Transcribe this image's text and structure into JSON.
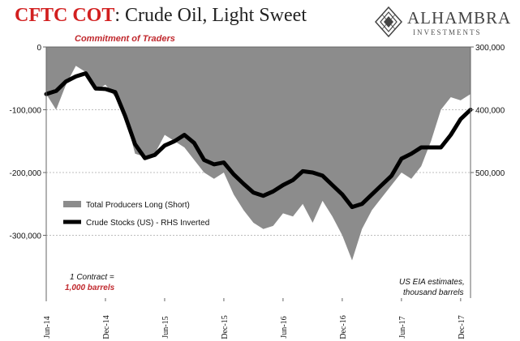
{
  "title": {
    "prefix": "CFTC COT",
    "rest": ": Crude Oil, Light Sweet"
  },
  "subtitle": "Commitment of Traders",
  "logo": {
    "name": "ALHAMBRA",
    "tagline": "INVESTMENTS",
    "icon": "diamond-pattern-icon"
  },
  "notes": {
    "contract_line1": "1 Contract =",
    "contract_line2": "1,000 barrels",
    "source_line1": "US EIA estimates,",
    "source_line2": "thousand barrels"
  },
  "colors": {
    "area": "#8c8c8c",
    "line": "#000000",
    "accent": "#c0282d",
    "grid": "#bdbdbd"
  },
  "chart_data": {
    "type": "area",
    "x_ticks": [
      "Jun-14",
      "Dec-14",
      "Jun-15",
      "Dec-15",
      "Jun-16",
      "Dec-16",
      "Jun-17",
      "Dec-17"
    ],
    "y_left": {
      "ticks": [
        0,
        -100000,
        -200000,
        -300000
      ],
      "tick_labels": [
        "0",
        "-100,000",
        "-200,000",
        "-300,000"
      ],
      "range": [
        -400000,
        0
      ]
    },
    "y_right": {
      "ticks": [
        300000,
        400000,
        500000
      ],
      "tick_labels": [
        "300,000",
        "400,000",
        "500,000"
      ],
      "range": [
        300000,
        700000
      ],
      "inverted": true
    },
    "grid": true,
    "legend_position": "middle-left",
    "series": [
      {
        "name": "Total Producers Long (Short)",
        "axis": "left",
        "kind": "area",
        "points": [
          [
            "2014-06",
            -75000
          ],
          [
            "2014-07",
            -100000
          ],
          [
            "2014-08",
            -60000
          ],
          [
            "2014-09",
            -30000
          ],
          [
            "2014-10",
            -40000
          ],
          [
            "2014-11",
            -70000
          ],
          [
            "2014-12",
            -60000
          ],
          [
            "2015-01",
            -80000
          ],
          [
            "2015-02",
            -110000
          ],
          [
            "2015-03",
            -170000
          ],
          [
            "2015-04",
            -175000
          ],
          [
            "2015-05",
            -170000
          ],
          [
            "2015-06",
            -140000
          ],
          [
            "2015-07",
            -150000
          ],
          [
            "2015-08",
            -160000
          ],
          [
            "2015-09",
            -180000
          ],
          [
            "2015-10",
            -200000
          ],
          [
            "2015-11",
            -210000
          ],
          [
            "2015-12",
            -200000
          ],
          [
            "2016-01",
            -235000
          ],
          [
            "2016-02",
            -260000
          ],
          [
            "2016-03",
            -280000
          ],
          [
            "2016-04",
            -290000
          ],
          [
            "2016-05",
            -285000
          ],
          [
            "2016-06",
            -265000
          ],
          [
            "2016-07",
            -270000
          ],
          [
            "2016-08",
            -250000
          ],
          [
            "2016-09",
            -280000
          ],
          [
            "2016-10",
            -245000
          ],
          [
            "2016-11",
            -270000
          ],
          [
            "2016-12",
            -300000
          ],
          [
            "2017-01",
            -340000
          ],
          [
            "2017-02",
            -290000
          ],
          [
            "2017-03",
            -260000
          ],
          [
            "2017-04",
            -240000
          ],
          [
            "2017-05",
            -220000
          ],
          [
            "2017-06",
            -200000
          ],
          [
            "2017-07",
            -210000
          ],
          [
            "2017-08",
            -190000
          ],
          [
            "2017-09",
            -150000
          ],
          [
            "2017-10",
            -100000
          ],
          [
            "2017-11",
            -80000
          ],
          [
            "2017-12",
            -85000
          ],
          [
            "2018-01",
            -75000
          ]
        ]
      },
      {
        "name": "Crude Stocks (US) - RHS Inverted",
        "axis": "right",
        "kind": "line",
        "points": [
          [
            "2014-06",
            375000
          ],
          [
            "2014-07",
            370000
          ],
          [
            "2014-08",
            355000
          ],
          [
            "2014-09",
            347000
          ],
          [
            "2014-10",
            342000
          ],
          [
            "2014-11",
            366000
          ],
          [
            "2014-12",
            367000
          ],
          [
            "2015-01",
            372000
          ],
          [
            "2015-02",
            410000
          ],
          [
            "2015-03",
            455000
          ],
          [
            "2015-04",
            477000
          ],
          [
            "2015-05",
            472000
          ],
          [
            "2015-06",
            457000
          ],
          [
            "2015-07",
            450000
          ],
          [
            "2015-08",
            440000
          ],
          [
            "2015-09",
            453000
          ],
          [
            "2015-10",
            480000
          ],
          [
            "2015-11",
            487000
          ],
          [
            "2015-12",
            484000
          ],
          [
            "2016-01",
            503000
          ],
          [
            "2016-02",
            518000
          ],
          [
            "2016-03",
            532000
          ],
          [
            "2016-04",
            537000
          ],
          [
            "2016-05",
            530000
          ],
          [
            "2016-06",
            520000
          ],
          [
            "2016-07",
            512000
          ],
          [
            "2016-08",
            498000
          ],
          [
            "2016-09",
            500000
          ],
          [
            "2016-10",
            505000
          ],
          [
            "2016-11",
            520000
          ],
          [
            "2016-12",
            535000
          ],
          [
            "2017-01",
            555000
          ],
          [
            "2017-02",
            550000
          ],
          [
            "2017-03",
            535000
          ],
          [
            "2017-04",
            520000
          ],
          [
            "2017-05",
            505000
          ],
          [
            "2017-06",
            478000
          ],
          [
            "2017-07",
            470000
          ],
          [
            "2017-08",
            460000
          ],
          [
            "2017-09",
            460000
          ],
          [
            "2017-10",
            460000
          ],
          [
            "2017-11",
            440000
          ],
          [
            "2017-12",
            415000
          ],
          [
            "2018-01",
            400000
          ]
        ]
      }
    ]
  }
}
